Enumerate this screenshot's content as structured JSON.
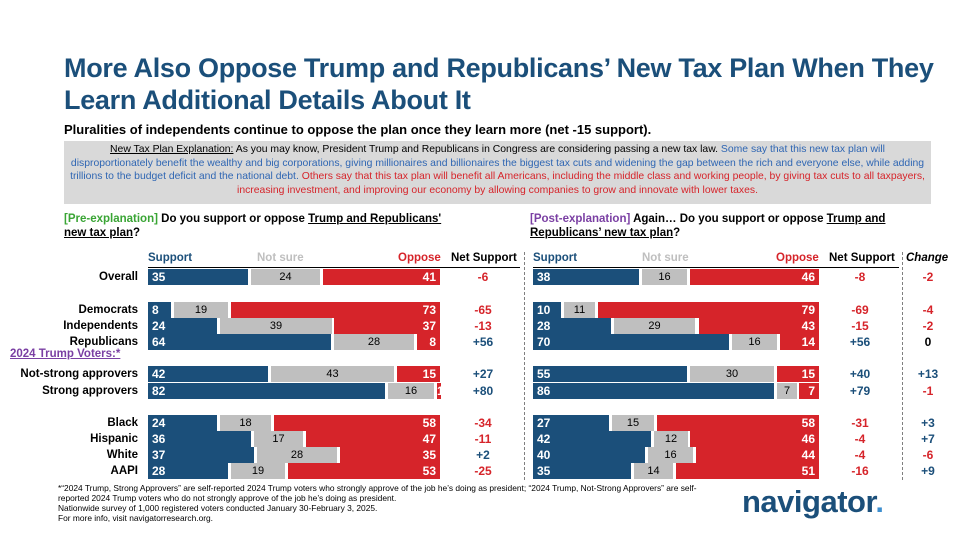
{
  "title": "More Also Oppose Trump and Republicans’ New Tax Plan When They Learn Additional Details About It",
  "subtitle": "Pluralities of independents continue to oppose the plan once they learn more (net -15 support).",
  "explanation": {
    "lead": "New Tax Plan Explanation:",
    "intro": " As you may know, President Trump and Republicans in Congress are considering passing a new tax law. ",
    "blue_text": "Some say that this new tax plan will disproportionately benefit the wealthy and big corporations, giving millionaires and billionaires the biggest tax cuts and widening the gap between the rich and everyone else, while adding trillions to the budget deficit and the national debt.",
    "red_text": " Others say that this tax plan will benefit all Americans, including the middle class and working people, by giving tax cuts to all taxpayers, increasing investment, and improving our economy by allowing companies to grow and innovate with lower taxes."
  },
  "pre_question": {
    "tag": "[Pre-explanation]",
    "text_a": " Do you support or oppose ",
    "text_u": "Trump and Republicans' new tax plan",
    "text_b": "?"
  },
  "post_question": {
    "tag": "[Post-explanation]",
    "text_a": " Again… Do you support or oppose ",
    "text_u": "Trump and Republicans’ new tax plan",
    "text_b": "?"
  },
  "headers": {
    "support": "Support",
    "not_sure": "Not sure",
    "oppose": "Oppose",
    "net_support": "Net Support",
    "change": "Change"
  },
  "trump_voters_label": "2024 Trump Voters:*",
  "chart_data": {
    "type": "bar",
    "stacked": true,
    "orientation": "horizontal",
    "series_colors": {
      "support": "#1b4f7a",
      "not_sure": "#bfbfbf",
      "oppose": "#d6242a"
    },
    "rows": [
      {
        "label": "Overall",
        "pre": [
          35,
          24,
          41
        ],
        "pre_net": "-6",
        "post": [
          38,
          16,
          46
        ],
        "post_net": "-8",
        "change": "-2"
      },
      {
        "label": "Democrats",
        "pre": [
          8,
          19,
          73
        ],
        "pre_net": "-65",
        "post": [
          10,
          11,
          79
        ],
        "post_net": "-69",
        "change": "-4"
      },
      {
        "label": "Independents",
        "pre": [
          24,
          39,
          37
        ],
        "pre_net": "-13",
        "post": [
          28,
          29,
          43
        ],
        "post_net": "-15",
        "change": "-2"
      },
      {
        "label": "Republicans",
        "pre": [
          64,
          28,
          8
        ],
        "pre_net": "+56",
        "post": [
          70,
          16,
          14
        ],
        "post_net": "+56",
        "change": "0"
      },
      {
        "label": "Not-strong approvers",
        "pre": [
          42,
          43,
          15
        ],
        "pre_net": "+27",
        "post": [
          55,
          30,
          15
        ],
        "post_net": "+40",
        "change": "+13"
      },
      {
        "label": "Strong approvers",
        "pre": [
          82,
          16,
          1
        ],
        "pre_net": "+80",
        "post": [
          86,
          7,
          7
        ],
        "post_net": "+79",
        "change": "-1"
      },
      {
        "label": "Black",
        "pre": [
          24,
          18,
          58
        ],
        "pre_net": "-34",
        "post": [
          27,
          15,
          58
        ],
        "post_net": "-31",
        "change": "+3"
      },
      {
        "label": "Hispanic",
        "pre": [
          36,
          17,
          47
        ],
        "pre_net": "-11",
        "post": [
          42,
          12,
          46
        ],
        "post_net": "-4",
        "change": "+7"
      },
      {
        "label": "White",
        "pre": [
          37,
          28,
          35
        ],
        "pre_net": "+2",
        "post": [
          40,
          16,
          44
        ],
        "post_net": "-4",
        "change": "-6"
      },
      {
        "label": "AAPI",
        "pre": [
          28,
          19,
          53
        ],
        "pre_net": "-25",
        "post": [
          35,
          14,
          51
        ],
        "post_net": "-16",
        "change": "+9"
      }
    ]
  },
  "footnote": [
    "*“2024 Trump, Strong Approvers” are self-reported 2024 Trump voters who strongly approve of the job he’s doing as president; “2024 Trump, Not-Strong Approvers” are self-reported 2024 Trump voters who do not strongly approve of the job he’s doing as president.",
    "Nationwide survey of 1,000 registered voters conducted January 30-February 3, 2025.",
    "For more info, visit navigatorresearch.org."
  ],
  "logo": {
    "text": "navigator",
    "dot": "."
  }
}
